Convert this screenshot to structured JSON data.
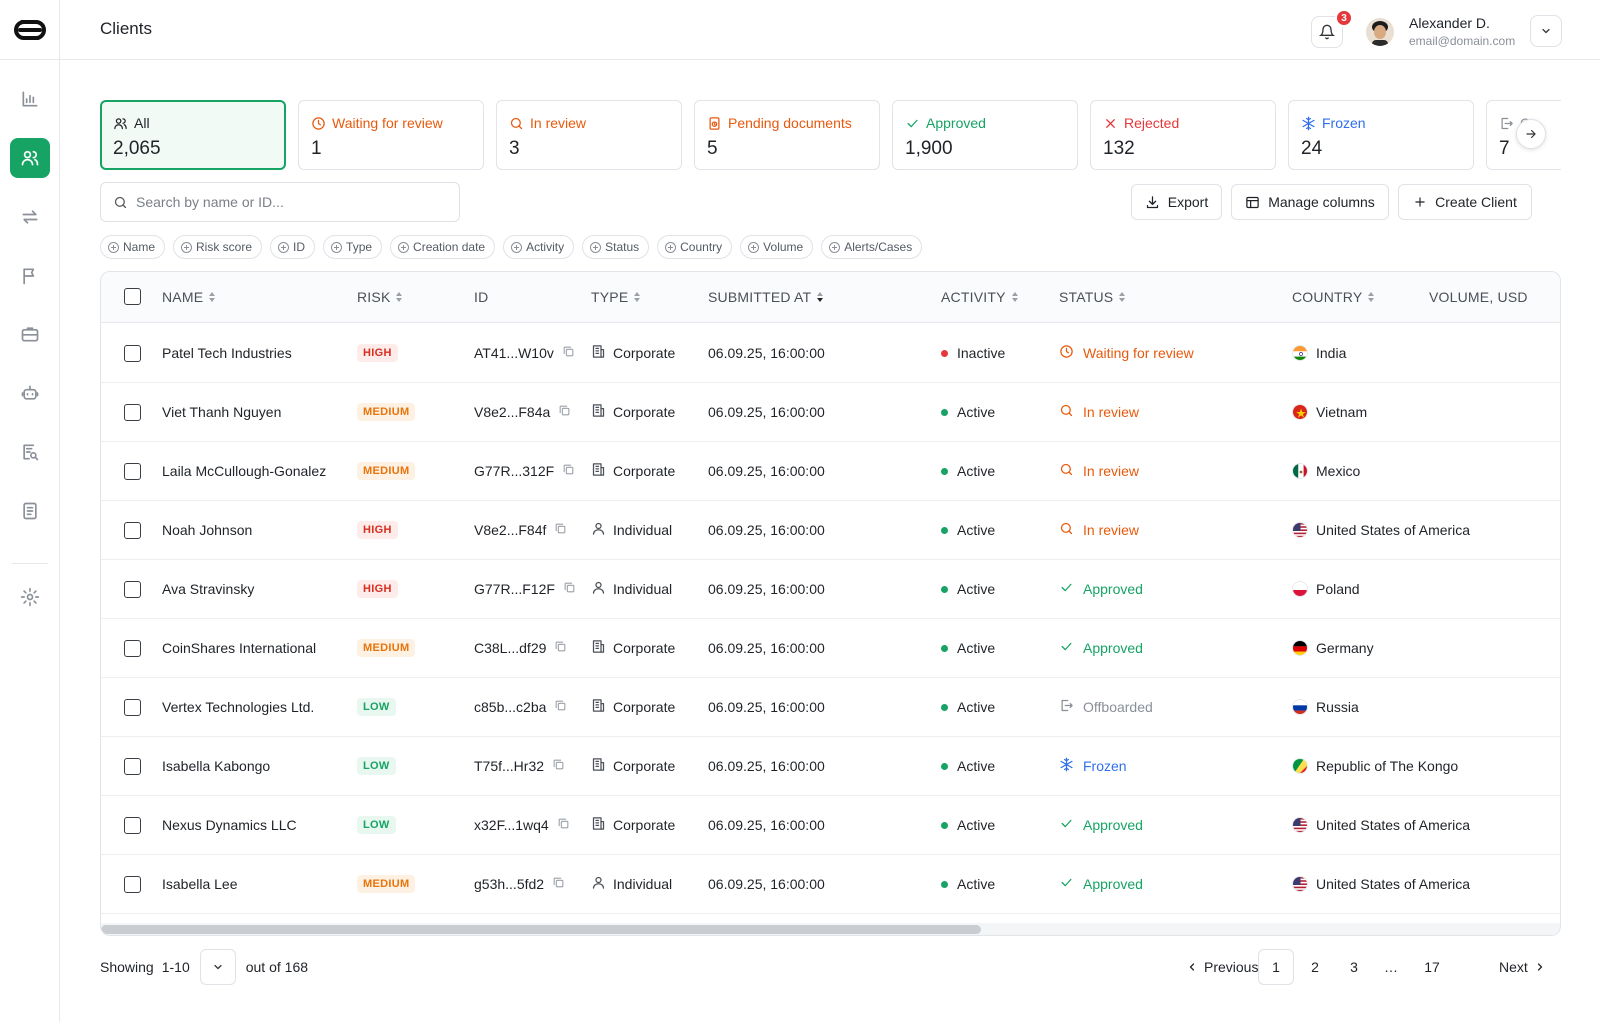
{
  "header": {
    "title": "Clients",
    "notifications_count": "3",
    "user_name": "Alexander D.",
    "user_email": "email@domain.com"
  },
  "sidebar": {
    "items": [
      {
        "icon": "chart-icon"
      },
      {
        "icon": "users-icon",
        "active": true
      },
      {
        "icon": "transfer-icon"
      },
      {
        "icon": "flag-icon"
      },
      {
        "icon": "briefcase-icon"
      },
      {
        "icon": "robot-icon"
      },
      {
        "icon": "report-search-icon"
      },
      {
        "icon": "document-icon"
      },
      {
        "icon": "gear-icon"
      }
    ]
  },
  "stats": [
    {
      "label": "All",
      "value": "2,065",
      "icon": "users-icon",
      "color": "#1f2328"
    },
    {
      "label": "Waiting for review",
      "value": "1",
      "icon": "clock-icon",
      "color": "#e8590c"
    },
    {
      "label": "In review",
      "value": "3",
      "icon": "search-icon",
      "color": "#e8590c"
    },
    {
      "label": "Pending documents",
      "value": "5",
      "icon": "doc-pending-icon",
      "color": "#e8590c"
    },
    {
      "label": "Approved",
      "value": "1,900",
      "icon": "check-icon",
      "color": "#16a364"
    },
    {
      "label": "Rejected",
      "value": "132",
      "icon": "x-icon",
      "color": "#e5383b"
    },
    {
      "label": "Frozen",
      "value": "24",
      "icon": "snowflake-icon",
      "color": "#2f6fed"
    },
    {
      "label": "O",
      "value": "7",
      "icon": "offboard-icon",
      "color": "#8a8f98"
    }
  ],
  "search": {
    "placeholder": "Search by name or ID..."
  },
  "actions": {
    "export": "Export",
    "manage_columns": "Manage columns",
    "create_client": "Create Client"
  },
  "filters": [
    "Name",
    "Risk score",
    "ID",
    "Type",
    "Creation date",
    "Activity",
    "Status",
    "Country",
    "Volume",
    "Alerts/Cases"
  ],
  "table": {
    "columns": {
      "name": "NAME",
      "risk": "RISK",
      "id": "ID",
      "type": "TYPE",
      "submitted": "SUBMITTED AT",
      "activity": "ACTIVITY",
      "status": "STATUS",
      "country": "COUNTRY",
      "volume": "VOLUME, USD"
    },
    "rows": [
      {
        "name": "Patel Tech Industries",
        "risk": "HIGH",
        "id": "AT41...W10v",
        "type": "Corporate",
        "submitted": "06.09.25, 16:00:00",
        "activity": "Inactive",
        "status": "Waiting for review",
        "country": "India"
      },
      {
        "name": "Viet Thanh Nguyen",
        "risk": "MEDIUM",
        "id": "V8e2...F84a",
        "type": "Corporate",
        "submitted": "06.09.25, 16:00:00",
        "activity": "Active",
        "status": "In review",
        "country": "Vietnam"
      },
      {
        "name": "Laila McCullough-Gonalez",
        "risk": "MEDIUM",
        "id": "G77R...312F",
        "type": "Corporate",
        "submitted": "06.09.25, 16:00:00",
        "activity": "Active",
        "status": "In review",
        "country": "Mexico"
      },
      {
        "name": "Noah Johnson",
        "risk": "HIGH",
        "id": "V8e2...F84f",
        "type": "Individual",
        "submitted": "06.09.25, 16:00:00",
        "activity": "Active",
        "status": "In review",
        "country": "United States of America"
      },
      {
        "name": "Ava Stravinsky",
        "risk": "HIGH",
        "id": "G77R...F12F",
        "type": "Individual",
        "submitted": "06.09.25, 16:00:00",
        "activity": "Active",
        "status": "Approved",
        "country": "Poland"
      },
      {
        "name": "CoinShares International",
        "risk": "MEDIUM",
        "id": "C38L...df29",
        "type": "Corporate",
        "submitted": "06.09.25, 16:00:00",
        "activity": "Active",
        "status": "Approved",
        "country": "Germany"
      },
      {
        "name": "Vertex Technologies Ltd.",
        "risk": "LOW",
        "id": "c85b...c2ba",
        "type": "Corporate",
        "submitted": "06.09.25, 16:00:00",
        "activity": "Active",
        "status": "Offboarded",
        "country": "Russia"
      },
      {
        "name": "Isabella Kabongo",
        "risk": "LOW",
        "id": "T75f...Hr32",
        "type": "Corporate",
        "submitted": "06.09.25, 16:00:00",
        "activity": "Active",
        "status": "Frozen",
        "country": "Republic of The Kongo"
      },
      {
        "name": "Nexus Dynamics LLC",
        "risk": "LOW",
        "id": "x32F...1wq4",
        "type": "Corporate",
        "submitted": "06.09.25, 16:00:00",
        "activity": "Active",
        "status": "Approved",
        "country": "United States of America"
      },
      {
        "name": "Isabella Lee",
        "risk": "MEDIUM",
        "id": "g53h...5fd2",
        "type": "Individual",
        "submitted": "06.09.25, 16:00:00",
        "activity": "Active",
        "status": "Approved",
        "country": "United States of America"
      }
    ]
  },
  "footer": {
    "showing_label": "Showing",
    "showing_range": "1-10",
    "out_of": "out of 168",
    "previous": "Previous",
    "next": "Next",
    "pages": [
      "1",
      "2",
      "3",
      "… ",
      "17"
    ],
    "current_page": "1"
  }
}
